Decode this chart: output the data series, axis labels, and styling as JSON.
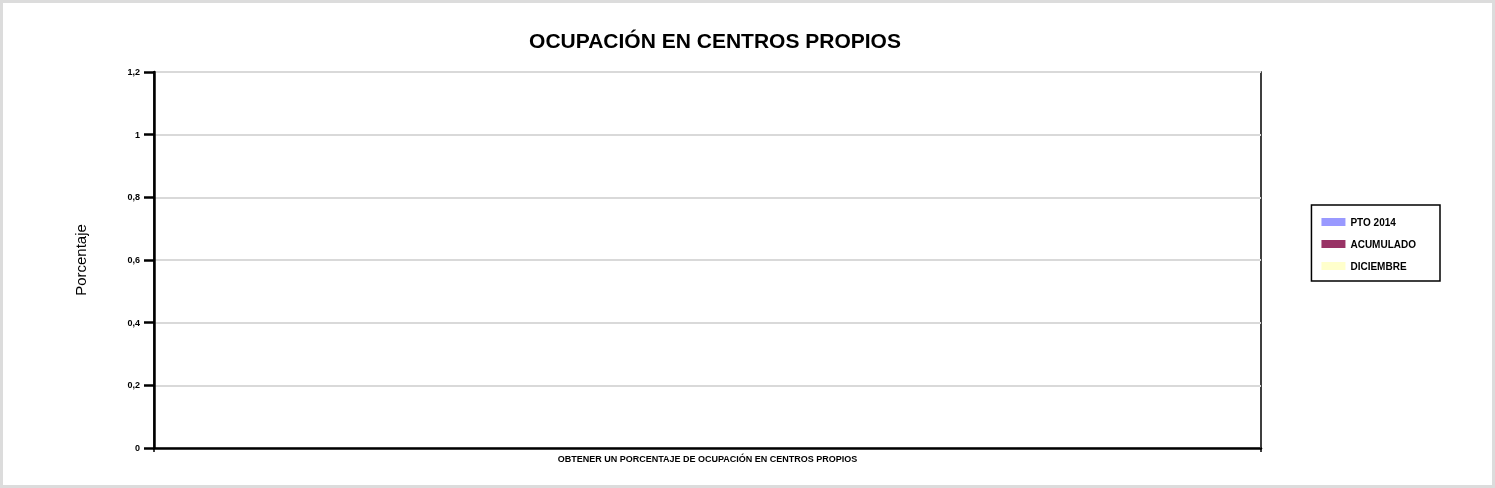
{
  "chart_data": {
    "type": "bar",
    "title": "OCUPACIÓN EN CENTROS PROPIOS",
    "ylabel": "Porcentaje",
    "categories": [
      "OBTENER UN PORCENTAJE DE OCUPACIÓN EN CENTROS PROPIOS"
    ],
    "series": [
      {
        "name": "PTO 2014",
        "color": "#9999ff",
        "values": [
          null
        ]
      },
      {
        "name": "ACUMULADO",
        "color": "#993366",
        "values": [
          null
        ]
      },
      {
        "name": "DICIEMBRE",
        "color": "#ffffcc",
        "values": [
          null
        ]
      }
    ],
    "ylim": [
      0,
      1.2
    ],
    "yticks": [
      0,
      {
        "value": 0.2,
        "label": "0,2"
      },
      {
        "value": 0.4,
        "label": "0,4"
      },
      {
        "value": 0.6,
        "label": "0,6"
      },
      {
        "value": 0.8,
        "label": "0,8"
      },
      1,
      {
        "value": 1.2,
        "label": "1,2"
      }
    ],
    "grid": "y",
    "legend": "right"
  }
}
